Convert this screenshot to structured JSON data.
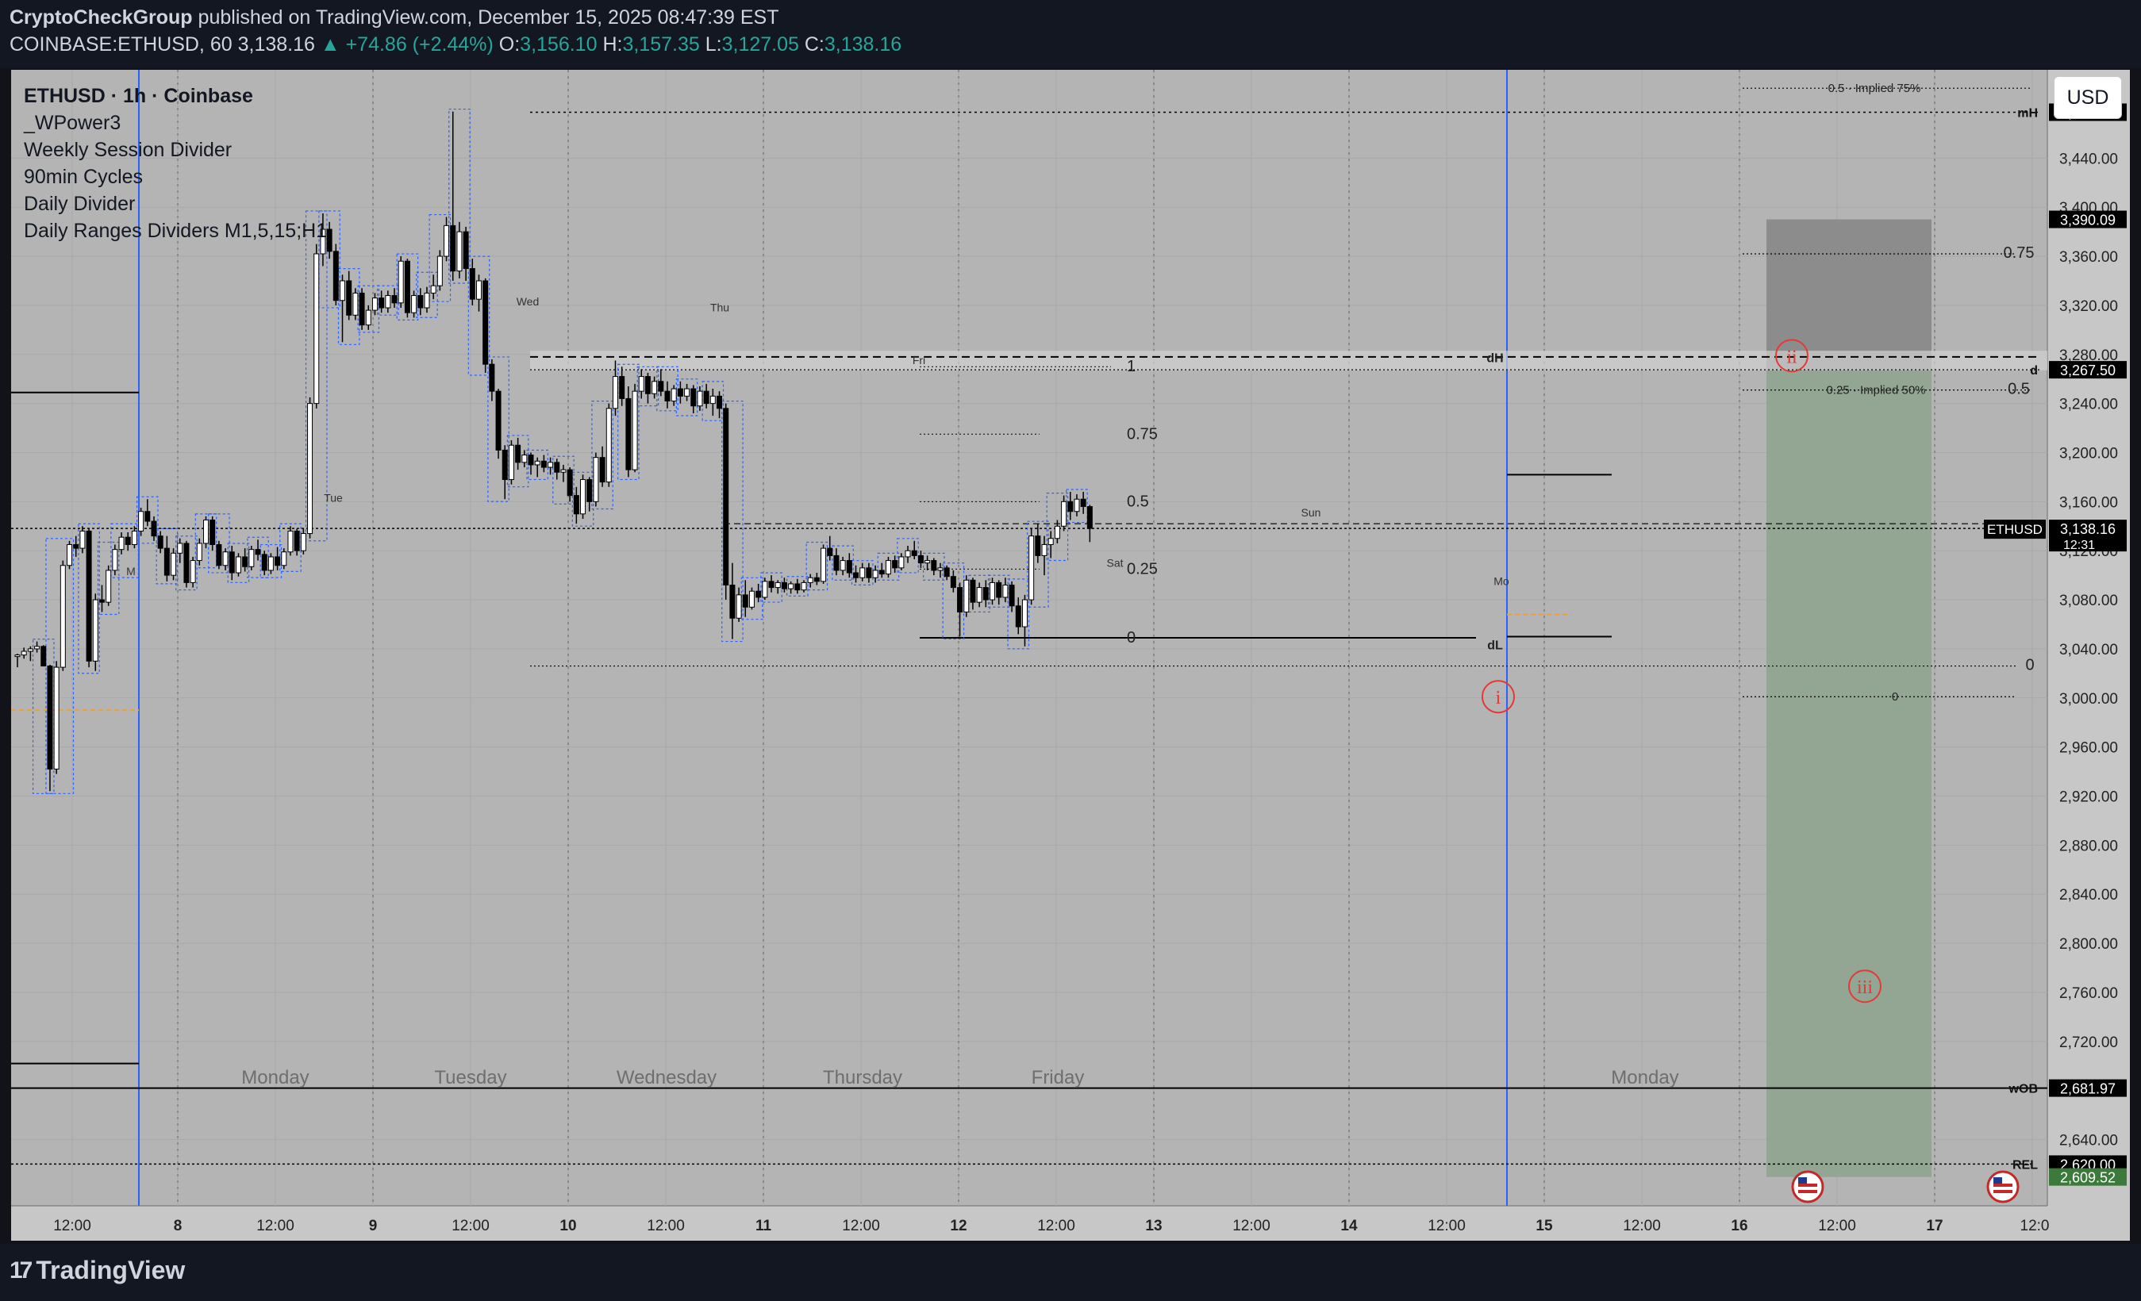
{
  "header": {
    "publisher": "CryptoCheckGroup",
    "published_text": "published on TradingView.com, December 15, 2025 08:47:39 EST",
    "symbol": "COINBASE:ETHUSD, 60",
    "last": "3,138.16",
    "change": "▲ +74.86 (+2.44%)",
    "o_label": "O:",
    "o_val": "3,156.10",
    "h_label": "H:",
    "h_val": "3,157.35",
    "l_label": "L:",
    "l_val": "3,127.05",
    "c_label": "C:",
    "c_val": "3,138.16"
  },
  "legend": {
    "title": "ETHUSD · 1h · Coinbase",
    "indicators": [
      "_WPower3",
      "Weekly Session Divider",
      "90min Cycles",
      "Daily Divider",
      "Daily Ranges Dividers M1,5,15;H1"
    ]
  },
  "currency_button": "USD",
  "brand": "TradingView",
  "colors": {
    "plot_bg": "#b4b4b4",
    "up_candle": "#ffffff",
    "down_candle": "#000000",
    "box_outline": "#2962ff",
    "long_target_zone": "#8c8c8c",
    "long_stop_zone": "#93a593",
    "marker": "#e53935",
    "accent_green": "#26a69a"
  },
  "chart_data": {
    "type": "candlestick",
    "symbol": "ETHUSD",
    "interval": "1h",
    "exchange": "Coinbase",
    "ylim": [
      2586,
      3512
    ],
    "x_ticks": [
      "12:00",
      "8",
      "12:00",
      "9",
      "12:00",
      "10",
      "12:00",
      "11",
      "12:00",
      "12",
      "12:00",
      "13",
      "12:00",
      "14",
      "12:00",
      "15",
      "12:00",
      "16",
      "12:00",
      "17",
      "12:0"
    ],
    "y_ticks": [
      3440,
      3400,
      3360,
      3320,
      3280,
      3240,
      3200,
      3160,
      3120,
      3080,
      3040,
      3000,
      2960,
      2920,
      2880,
      2840,
      2800,
      2760,
      2720,
      2640
    ],
    "y_tick_labels": [
      "3,440.00",
      "3,400.00",
      "3,360.00",
      "3,320.00",
      "3,280.00",
      "3,240.00",
      "3,200.00",
      "3,160.00",
      "3,120.00",
      "3,080.00",
      "3,040.00",
      "3,000.00",
      "2,960.00",
      "2,920.00",
      "2,880.00",
      "2,840.00",
      "2,800.00",
      "2,760.00",
      "2,720.00",
      "2,640.00"
    ],
    "day_labels": [
      "Monday",
      "Tuesday",
      "Wednesday",
      "Thursday",
      "Friday",
      "Monday"
    ],
    "small_day_labels": [
      "M",
      "Tue",
      "Wed",
      "Thu",
      "Fri",
      "Sat",
      "Sun",
      "Mo"
    ],
    "price_tags": [
      {
        "label": "mH",
        "value": "3,477.44",
        "price": 3477.44
      },
      {
        "label": "",
        "value": "3,390.09",
        "price": 3390.09
      },
      {
        "label": "d",
        "value": "3,267.50",
        "price": 3267.5
      },
      {
        "label": "ETHUSD",
        "value": "3,138.16",
        "sub": "12:31",
        "price": 3138.16
      },
      {
        "label": "wOB",
        "value": "2,681.97",
        "price": 2681.97
      },
      {
        "label": "REL",
        "value": "2,620.00",
        "price": 2620
      },
      {
        "label": "",
        "value": "2,609.52",
        "price": 2609.52
      }
    ],
    "level_labels": [
      {
        "text": "dH",
        "price": 3277
      },
      {
        "text": "dL",
        "price": 3043
      },
      {
        "text": "0.5 · Implied 75%",
        "price": 3497
      },
      {
        "text": "0.25 · Implied 50%",
        "price": 3251
      },
      {
        "text": "0.75",
        "price": 3362
      },
      {
        "text": "0.5",
        "price": 3251
      },
      {
        "text": "0",
        "price": 3026
      },
      {
        "text": "0",
        "price": 3001
      }
    ],
    "fib_labels": [
      {
        "text": "1",
        "price": 3270
      },
      {
        "text": "0.75",
        "price": 3215
      },
      {
        "text": "0.5",
        "price": 3160
      },
      {
        "text": "0.25",
        "price": 3105
      },
      {
        "text": "0",
        "price": 3049
      }
    ],
    "markers": [
      "i",
      "ii",
      "iii"
    ],
    "candles": [
      [
        3034.0,
        3036.0,
        3025.0,
        3035.0
      ],
      [
        3035.0,
        3041.0,
        3032.0,
        3038.0
      ],
      [
        3038.0,
        3042.0,
        3030.0,
        3040.0
      ],
      [
        3040.0,
        3046.0,
        3037.0,
        3042.0
      ],
      [
        3042.0,
        3043.0,
        3032.0,
        3026.0
      ],
      [
        3026.0,
        3027.0,
        2924.0,
        2942.0
      ],
      [
        2942.0,
        3030.0,
        2938.0,
        3025.0
      ],
      [
        3025.0,
        3112.0,
        3022.0,
        3108.0
      ],
      [
        3108.0,
        3128.0,
        3105.0,
        3125.0
      ],
      [
        3125.0,
        3132.0,
        3115.0,
        3122.0
      ],
      [
        3122.0,
        3140.0,
        3118.0,
        3136.0
      ],
      [
        3136.0,
        3138.0,
        3025.0,
        3030.0
      ],
      [
        3030.0,
        3085.0,
        3022.0,
        3080.0
      ],
      [
        3080.0,
        3092.0,
        3070.0,
        3078.0
      ],
      [
        3078.0,
        3108.0,
        3075.0,
        3104.0
      ],
      [
        3104.0,
        3125.0,
        3100.0,
        3121.0
      ],
      [
        3121.0,
        3135.0,
        3117.0,
        3131.0
      ],
      [
        3131.0,
        3135.0,
        3120.0,
        3125.0
      ],
      [
        3125.0,
        3140.0,
        3122.0,
        3136.0
      ],
      [
        3136.0,
        3155.0,
        3132.0,
        3152.0
      ],
      [
        3152.0,
        3162.0,
        3140.0,
        3144.0
      ],
      [
        3144.0,
        3148.0,
        3128.0,
        3132.0
      ],
      [
        3132.0,
        3136.0,
        3118.0,
        3122.0
      ],
      [
        3122.0,
        3132.0,
        3095.0,
        3100.0
      ],
      [
        3100.0,
        3122.0,
        3096.0,
        3118.0
      ],
      [
        3118.0,
        3130.0,
        3110.0,
        3126.0
      ],
      [
        3126.0,
        3128.0,
        3090.0,
        3094.0
      ],
      [
        3094.0,
        3115.0,
        3090.0,
        3112.0
      ],
      [
        3112.0,
        3130.0,
        3108.0,
        3126.0
      ],
      [
        3126.0,
        3148.0,
        3122.0,
        3145.0
      ],
      [
        3145.0,
        3148.0,
        3120.0,
        3125.0
      ],
      [
        3125.0,
        3128.0,
        3105.0,
        3108.0
      ],
      [
        3108.0,
        3122.0,
        3104.0,
        3119.0
      ],
      [
        3119.0,
        3124.0,
        3096.0,
        3102.0
      ],
      [
        3102.0,
        3118.0,
        3099.0,
        3115.0
      ],
      [
        3115.0,
        3122.0,
        3103.0,
        3107.0
      ],
      [
        3107.0,
        3124.0,
        3104.0,
        3121.0
      ],
      [
        3121.0,
        3129.0,
        3112.0,
        3117.0
      ],
      [
        3117.0,
        3120.0,
        3100.0,
        3104.0
      ],
      [
        3104.0,
        3118.0,
        3101.0,
        3115.0
      ],
      [
        3115.0,
        3123.0,
        3104.0,
        3108.0
      ],
      [
        3108.0,
        3122.0,
        3105.0,
        3119.0
      ],
      [
        3119.0,
        3140.0,
        3116.0,
        3136.0
      ],
      [
        3136.0,
        3138.0,
        3116.0,
        3120.0
      ],
      [
        3120.0,
        3138.0,
        3117.0,
        3134.0
      ],
      [
        3134.0,
        3245.0,
        3130.0,
        3240.0
      ],
      [
        3240.0,
        3370.0,
        3236.0,
        3362.0
      ],
      [
        3362.0,
        3395.0,
        3352.0,
        3382.0
      ],
      [
        3382.0,
        3388.0,
        3358.0,
        3364.0
      ],
      [
        3364.0,
        3370.0,
        3320.0,
        3324.0
      ],
      [
        3324.0,
        3345.0,
        3290.0,
        3340.0
      ],
      [
        3340.0,
        3348.0,
        3308.0,
        3312.0
      ],
      [
        3312.0,
        3334.0,
        3308.0,
        3330.0
      ],
      [
        3330.0,
        3334.0,
        3300.0,
        3304.0
      ],
      [
        3304.0,
        3320.0,
        3300.0,
        3316.0
      ],
      [
        3316.0,
        3330.0,
        3312.0,
        3326.0
      ],
      [
        3326.0,
        3332.0,
        3314.0,
        3318.0
      ],
      [
        3318.0,
        3332.0,
        3314.0,
        3328.0
      ],
      [
        3328.0,
        3334.0,
        3318.0,
        3322.0
      ],
      [
        3322.0,
        3360.0,
        3318.0,
        3356.0
      ],
      [
        3356.0,
        3358.0,
        3310.0,
        3314.0
      ],
      [
        3314.0,
        3332.0,
        3310.0,
        3328.0
      ],
      [
        3328.0,
        3334.0,
        3312.0,
        3318.0
      ],
      [
        3318.0,
        3335.0,
        3314.0,
        3330.0
      ],
      [
        3330.0,
        3345.0,
        3325.0,
        3336.0
      ],
      [
        3336.0,
        3365.0,
        3332.0,
        3360.0
      ],
      [
        3360.0,
        3392.0,
        3356.0,
        3385.0
      ],
      [
        3385.0,
        3478.0,
        3340.0,
        3348.0
      ],
      [
        3348.0,
        3388.0,
        3342.0,
        3380.0
      ],
      [
        3380.0,
        3384.0,
        3340.0,
        3350.0
      ],
      [
        3350.0,
        3358.0,
        3320.0,
        3325.0
      ],
      [
        3325.0,
        3345.0,
        3315.0,
        3340.0
      ],
      [
        3340.0,
        3342.0,
        3265.0,
        3272.0
      ],
      [
        3272.0,
        3276.0,
        3242.0,
        3250.0
      ],
      [
        3250.0,
        3252.0,
        3195.0,
        3202.0
      ],
      [
        3202.0,
        3206.0,
        3162.0,
        3178.0
      ],
      [
        3178.0,
        3210.0,
        3174.0,
        3206.0
      ],
      [
        3206.0,
        3212.0,
        3186.0,
        3192.0
      ],
      [
        3192.0,
        3202.0,
        3188.0,
        3198.0
      ],
      [
        3198.0,
        3200.0,
        3182.0,
        3190.0
      ],
      [
        3190.0,
        3196.0,
        3180.0,
        3193.0
      ],
      [
        3193.0,
        3198.0,
        3184.0,
        3188.0
      ],
      [
        3188.0,
        3196.0,
        3182.0,
        3192.0
      ],
      [
        3192.0,
        3195.0,
        3178.0,
        3184.0
      ],
      [
        3184.0,
        3190.0,
        3176.0,
        3186.0
      ],
      [
        3186.0,
        3188.0,
        3160.0,
        3165.0
      ],
      [
        3165.0,
        3172.0,
        3142.0,
        3150.0
      ],
      [
        3150.0,
        3182.0,
        3146.0,
        3178.0
      ],
      [
        3178.0,
        3180.0,
        3152.0,
        3160.0
      ],
      [
        3160.0,
        3200.0,
        3156.0,
        3196.0
      ],
      [
        3196.0,
        3205.0,
        3172.0,
        3176.0
      ],
      [
        3176.0,
        3240.0,
        3172.0,
        3236.0
      ],
      [
        3236.0,
        3275.0,
        3230.0,
        3262.0
      ],
      [
        3262.0,
        3270.0,
        3238.0,
        3244.0
      ],
      [
        3244.0,
        3254.0,
        3180.0,
        3186.0
      ],
      [
        3186.0,
        3256.0,
        3184.0,
        3250.0
      ],
      [
        3250.0,
        3268.0,
        3244.0,
        3262.0
      ],
      [
        3262.0,
        3265.0,
        3240.0,
        3248.0
      ],
      [
        3248.0,
        3262.0,
        3244.0,
        3258.0
      ],
      [
        3258.0,
        3268.0,
        3246.0,
        3250.0
      ],
      [
        3250.0,
        3258.0,
        3236.0,
        3242.0
      ],
      [
        3242.0,
        3255.0,
        3238.0,
        3252.0
      ],
      [
        3252.0,
        3258.0,
        3240.0,
        3246.0
      ],
      [
        3246.0,
        3256.0,
        3242.0,
        3252.0
      ],
      [
        3252.0,
        3255.0,
        3232.0,
        3238.0
      ],
      [
        3238.0,
        3254.0,
        3234.0,
        3250.0
      ],
      [
        3250.0,
        3256.0,
        3236.0,
        3240.0
      ],
      [
        3240.0,
        3252.0,
        3230.0,
        3246.0
      ],
      [
        3246.0,
        3250.0,
        3228.0,
        3236.0
      ],
      [
        3236.0,
        3240.0,
        3080.0,
        3092.0
      ],
      [
        3092.0,
        3110.0,
        3048.0,
        3065.0
      ],
      [
        3065.0,
        3090.0,
        3062.0,
        3084.0
      ],
      [
        3084.0,
        3096.0,
        3066.0,
        3074.0
      ],
      [
        3074.0,
        3090.0,
        3072.0,
        3087.0
      ],
      [
        3087.0,
        3093.0,
        3078.0,
        3082.0
      ],
      [
        3082.0,
        3098.0,
        3080.0,
        3095.0
      ],
      [
        3095.0,
        3100.0,
        3086.0,
        3090.0
      ],
      [
        3090.0,
        3096.0,
        3085.0,
        3094.0
      ],
      [
        3094.0,
        3098.0,
        3086.0,
        3089.0
      ],
      [
        3089.0,
        3095.0,
        3085.0,
        3093.0
      ],
      [
        3093.0,
        3097.0,
        3085.0,
        3088.0
      ],
      [
        3088.0,
        3096.0,
        3086.0,
        3094.0
      ],
      [
        3094.0,
        3101.0,
        3090.0,
        3098.0
      ],
      [
        3098.0,
        3102.0,
        3092.0,
        3095.0
      ],
      [
        3095.0,
        3125.0,
        3093.0,
        3122.0
      ],
      [
        3122.0,
        3132.0,
        3112.0,
        3116.0
      ],
      [
        3116.0,
        3122.0,
        3100.0,
        3104.0
      ],
      [
        3104.0,
        3115.0,
        3100.0,
        3112.0
      ],
      [
        3112.0,
        3118.0,
        3098.0,
        3102.0
      ],
      [
        3102.0,
        3108.0,
        3094.0,
        3098.0
      ],
      [
        3098.0,
        3110.0,
        3095.0,
        3106.0
      ],
      [
        3106.0,
        3110.0,
        3094.0,
        3098.0
      ],
      [
        3098.0,
        3108.0,
        3094.0,
        3104.0
      ],
      [
        3104.0,
        3110.0,
        3098.0,
        3101.0
      ],
      [
        3101.0,
        3115.0,
        3098.0,
        3112.0
      ],
      [
        3112.0,
        3116.0,
        3102.0,
        3106.0
      ],
      [
        3106.0,
        3118.0,
        3104.0,
        3115.0
      ],
      [
        3115.0,
        3124.0,
        3110.0,
        3120.0
      ],
      [
        3120.0,
        3128.0,
        3113.0,
        3116.0
      ],
      [
        3116.0,
        3120.0,
        3106.0,
        3110.0
      ],
      [
        3110.0,
        3116.0,
        3104.0,
        3112.0
      ],
      [
        3112.0,
        3114.0,
        3100.0,
        3104.0
      ],
      [
        3104.0,
        3110.0,
        3098.0,
        3106.0
      ],
      [
        3106.0,
        3108.0,
        3096.0,
        3099.0
      ],
      [
        3099.0,
        3104.0,
        3086.0,
        3090.0
      ],
      [
        3090.0,
        3094.0,
        3050.0,
        3070.0
      ],
      [
        3070.0,
        3100.0,
        3066.0,
        3096.0
      ],
      [
        3096.0,
        3098.0,
        3072.0,
        3078.0
      ],
      [
        3078.0,
        3094.0,
        3074.0,
        3090.0
      ],
      [
        3090.0,
        3096.0,
        3074.0,
        3080.0
      ],
      [
        3080.0,
        3098.0,
        3076.0,
        3094.0
      ],
      [
        3094.0,
        3096.0,
        3076.0,
        3082.0
      ],
      [
        3082.0,
        3098.0,
        3078.0,
        3092.0
      ],
      [
        3092.0,
        3095.0,
        3070.0,
        3075.0
      ],
      [
        3075.0,
        3082.0,
        3052.0,
        3058.0
      ],
      [
        3058.0,
        3084.0,
        3042.0,
        3080.0
      ],
      [
        3080.0,
        3138.0,
        3076.0,
        3132.0
      ],
      [
        3132.0,
        3142.0,
        3110.0,
        3116.0
      ],
      [
        3116.0,
        3132.0,
        3100.0,
        3125.0
      ],
      [
        3125.0,
        3136.0,
        3114.0,
        3130.0
      ],
      [
        3130.0,
        3145.0,
        3126.0,
        3140.0
      ],
      [
        3140.0,
        3165.0,
        3136.0,
        3160.0
      ],
      [
        3160.0,
        3168.0,
        3145.0,
        3152.0
      ],
      [
        3152.0,
        3166.0,
        3148.0,
        3162.0
      ],
      [
        3162.0,
        3168.0,
        3150.0,
        3156.0
      ],
      [
        3156.0,
        3157.35,
        3127.05,
        3138.16
      ]
    ]
  }
}
